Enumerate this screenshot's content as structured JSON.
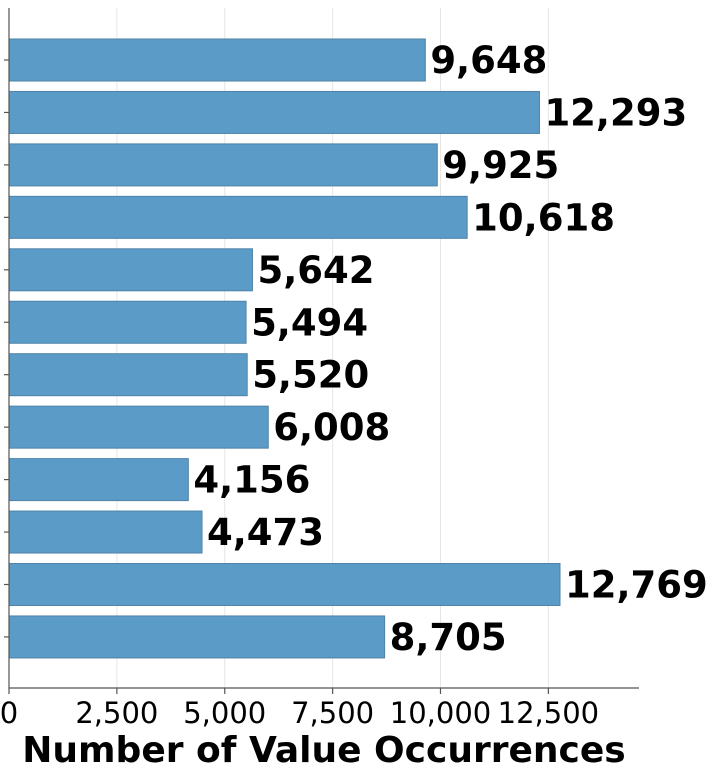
{
  "chart_data": {
    "type": "bar",
    "orientation": "horizontal",
    "values": [
      9648,
      12293,
      9925,
      10618,
      5642,
      5494,
      5520,
      6008,
      4156,
      4473,
      12769,
      8705
    ],
    "value_labels": [
      "9,648",
      "12,293",
      "9,925",
      "10,618",
      "5,642",
      "5,494",
      "5,520",
      "6,008",
      "4,156",
      "4,473",
      "12,769",
      "8,705"
    ],
    "xlabel": "Number of Value Occurrences",
    "xlim": [
      0,
      14600
    ],
    "x_ticks": [
      0,
      2500,
      5000,
      7500,
      10000,
      12500
    ],
    "x_tick_labels": [
      "0",
      "2,500",
      "5,000",
      "7,500",
      "10,000",
      "12,500"
    ],
    "grid": "vertical",
    "colors": {
      "bar": "#5b9bc8",
      "bar_edge": "#4f83a8"
    }
  }
}
